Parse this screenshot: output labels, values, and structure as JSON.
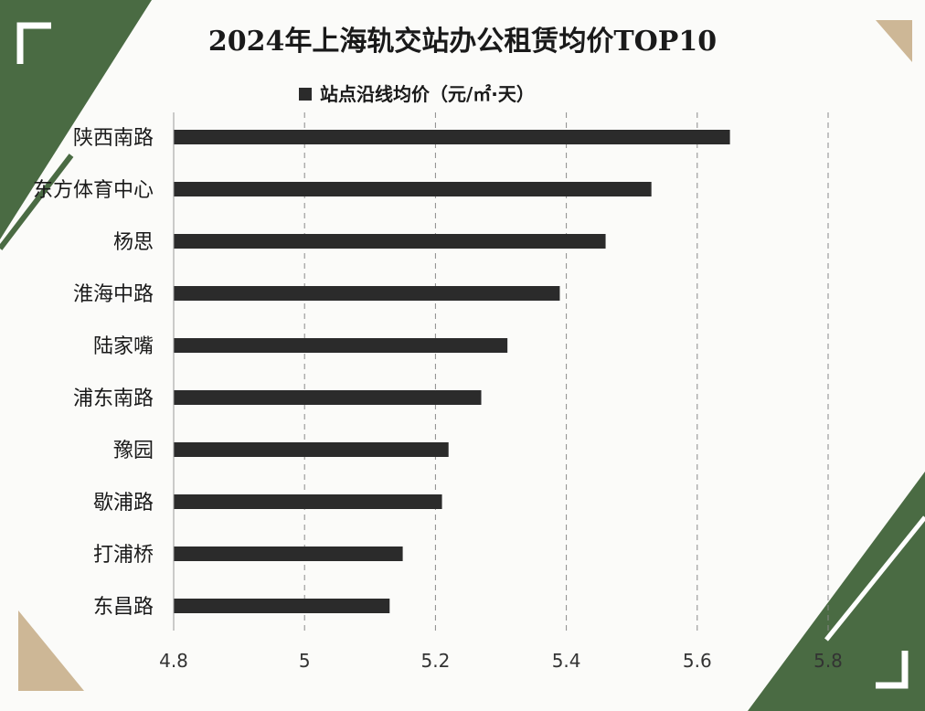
{
  "colors": {
    "bar": "#2b2b2b",
    "grid": "#8a8a8a",
    "background": "#fbfbf9",
    "green": "#4a6b43",
    "tan": "#cdb796"
  },
  "chart_data": {
    "type": "bar",
    "orientation": "horizontal",
    "title": "2024年上海轨交站办公租赁均价TOP10",
    "categories": [
      "陕西南路",
      "东方体育中心",
      "杨思",
      "淮海中路",
      "陆家嘴",
      "浦东南路",
      "豫园",
      "歇浦路",
      "打浦桥",
      "东昌路"
    ],
    "series": [
      {
        "name": "站点沿线均价（元/㎡·天）",
        "values": [
          5.65,
          5.53,
          5.46,
          5.39,
          5.31,
          5.27,
          5.22,
          5.21,
          5.15,
          5.13
        ]
      }
    ],
    "xlim": [
      4.8,
      5.8
    ],
    "x_ticks": [
      "4.8",
      "5",
      "5.2",
      "5.4",
      "5.6",
      "5.8"
    ],
    "x_tick_values": [
      4.8,
      5.0,
      5.2,
      5.4,
      5.6,
      5.8
    ],
    "grid": "vertical-dashed",
    "legend": "top-center"
  }
}
